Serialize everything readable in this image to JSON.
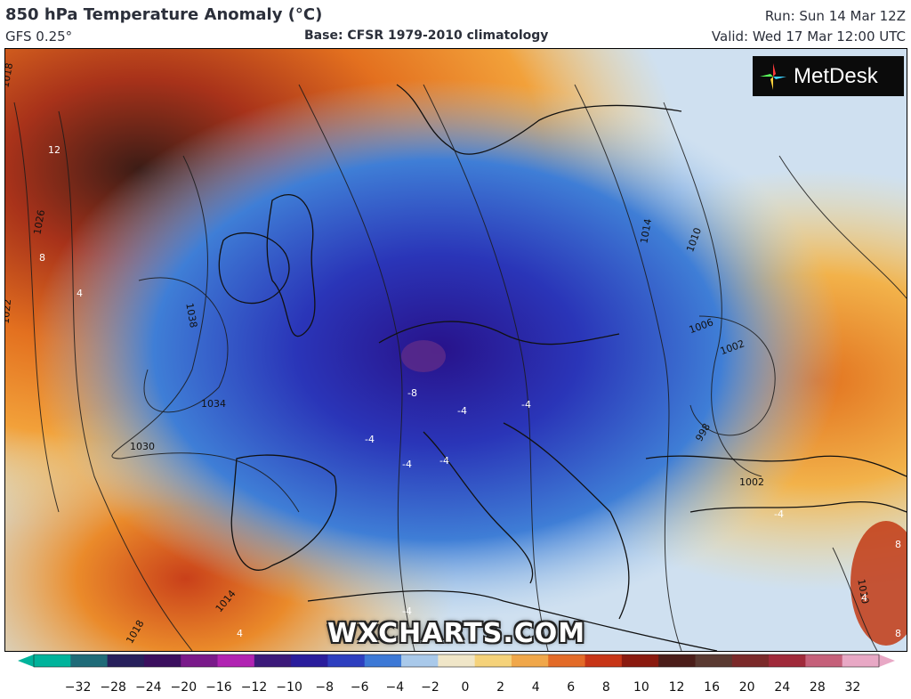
{
  "header": {
    "title": "850 hPa Temperature Anomaly (°C)",
    "model": "GFS 0.25°",
    "base": "Base: CFSR 1979-2010 climatology",
    "run": "Run: Sun 14 Mar 12Z",
    "valid": "Valid: Wed 17 Mar 12:00 UTC"
  },
  "logo": {
    "text": "MetDesk"
  },
  "watermark": "WXCHARTS.COM",
  "map": {
    "region": "Europe",
    "isobar_labels": [
      "1018",
      "1022",
      "1026",
      "1030",
      "1034",
      "1038",
      "1014",
      "1010",
      "1006",
      "1002",
      "998",
      "1002",
      "1014",
      "1018",
      "1010"
    ],
    "anomaly_labels": [
      "12",
      "8",
      "4",
      "-8",
      "-4",
      "-4",
      "-4",
      "-4",
      "-4",
      "-4",
      "-4",
      "4",
      "4",
      "8",
      "8"
    ]
  },
  "colorbar": {
    "ticks": [
      "−32",
      "−28",
      "−24",
      "−20",
      "−16",
      "−12",
      "−10",
      "−8",
      "−6",
      "−4",
      "−2",
      "0",
      "2",
      "4",
      "6",
      "8",
      "10",
      "12",
      "16",
      "20",
      "24",
      "28",
      "32"
    ],
    "colors": [
      "#00b39b",
      "#1f6b78",
      "#27205c",
      "#3b0f5e",
      "#7a1a8a",
      "#b123b2",
      "#3c1a7a",
      "#2a1d9c",
      "#2e3fbf",
      "#3d79d6",
      "#a9c9ea",
      "#f0e6c8",
      "#f5d27a",
      "#f0a74a",
      "#e36b28",
      "#c73517",
      "#8a1a0f",
      "#4b1e1a",
      "#5a3a32",
      "#7b2a2a",
      "#a02a3a",
      "#c5607a",
      "#e8a8c5"
    ]
  }
}
